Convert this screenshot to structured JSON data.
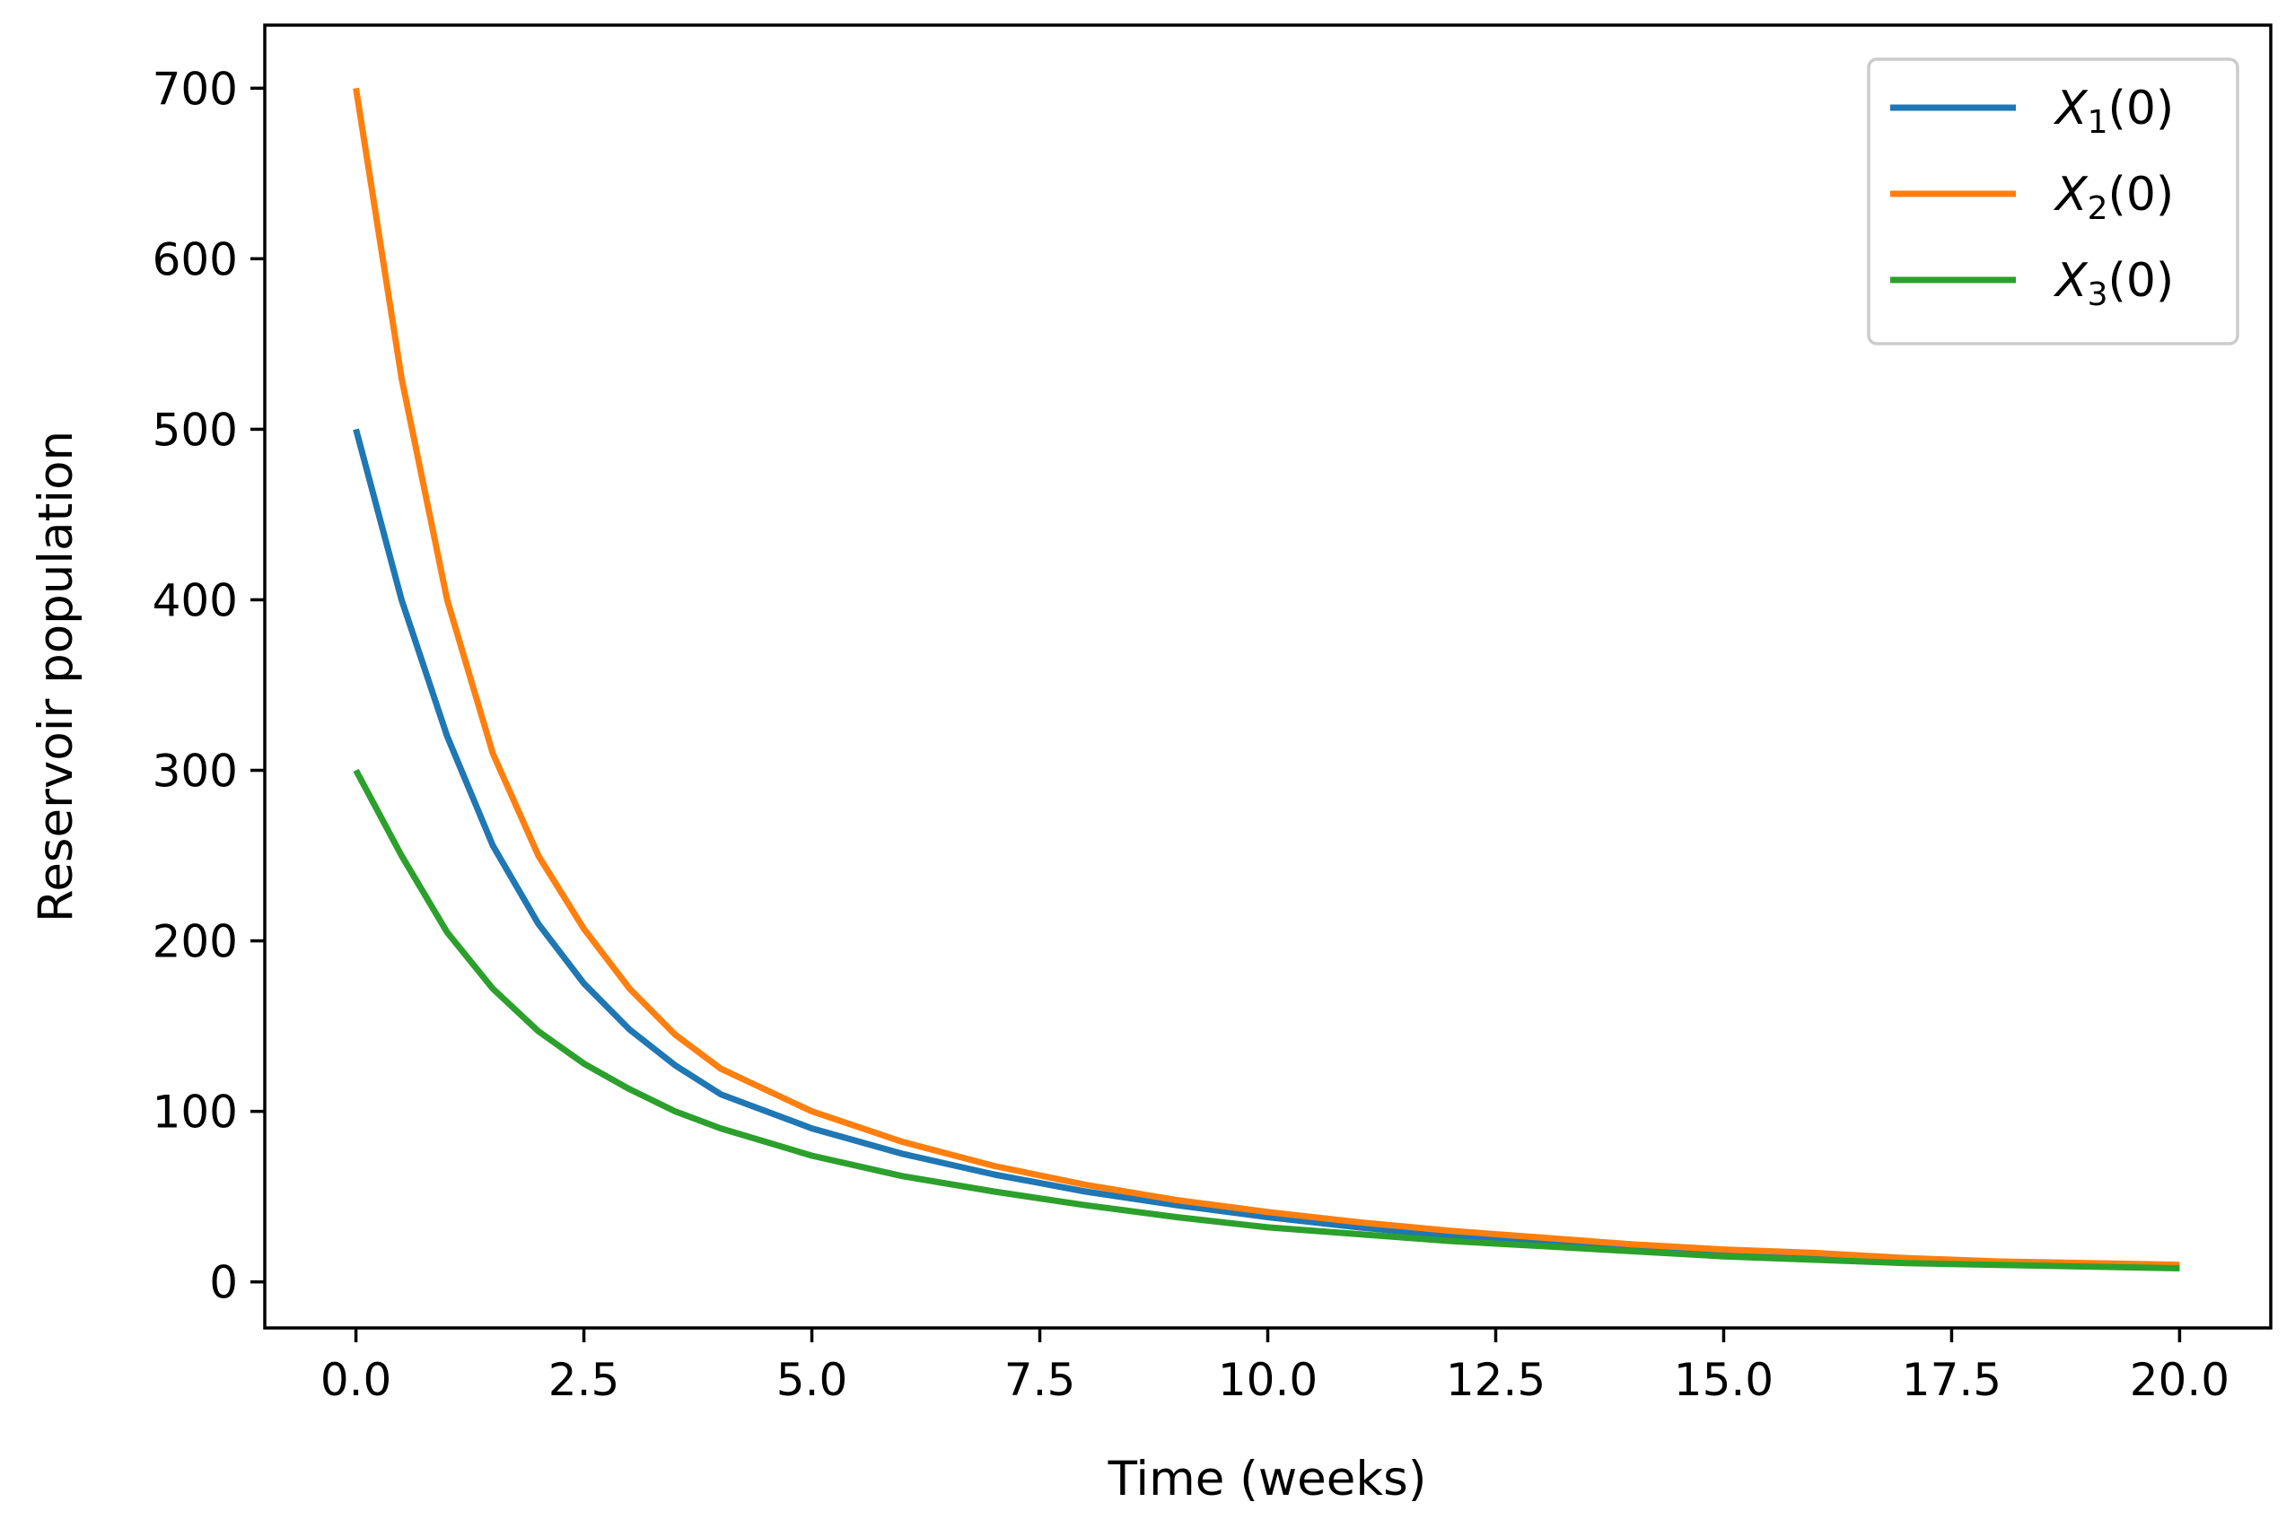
{
  "chart_data": {
    "type": "line",
    "title": "",
    "xlabel": "Time (weeks)",
    "ylabel": "Reservoir population",
    "xlim": [
      -1.0,
      21.0
    ],
    "ylim": [
      -27,
      737
    ],
    "xticks": [
      0.0,
      2.5,
      5.0,
      7.5,
      10.0,
      12.5,
      15.0,
      17.5,
      20.0
    ],
    "xtick_labels": [
      "0.0",
      "2.5",
      "5.0",
      "7.5",
      "10.0",
      "12.5",
      "15.0",
      "17.5",
      "20.0"
    ],
    "yticks": [
      0,
      100,
      200,
      300,
      400,
      500,
      600,
      700
    ],
    "ytick_labels": [
      "0",
      "100",
      "200",
      "300",
      "400",
      "500",
      "600",
      "700"
    ],
    "grid": false,
    "legend_position": "top-right",
    "x": [
      0,
      0.5,
      1,
      1.5,
      2,
      2.5,
      3,
      3.5,
      4,
      5,
      6,
      7,
      8,
      9,
      10,
      11,
      12,
      13,
      14,
      15,
      16,
      17,
      18,
      19,
      20
    ],
    "series": [
      {
        "name": "X1(0)",
        "symbol": "X",
        "subscript": "1",
        "suffix": "(0)",
        "color": "#1f77b4",
        "values": [
          500,
          400,
          320,
          256,
          210,
          175,
          148,
          127,
          110,
          90,
          75,
          63,
          53,
          45,
          38,
          32,
          27,
          23,
          20,
          17,
          15,
          13,
          11,
          10,
          9
        ]
      },
      {
        "name": "X2(0)",
        "symbol": "X",
        "subscript": "2",
        "suffix": "(0)",
        "color": "#ff7f0e",
        "values": [
          700,
          530,
          400,
          310,
          250,
          207,
          172,
          145,
          125,
          100,
          82,
          68,
          57,
          48,
          41,
          35,
          30,
          26,
          22,
          19,
          17,
          14,
          12,
          11,
          10
        ]
      },
      {
        "name": "X3(0)",
        "symbol": "X",
        "subscript": "3",
        "suffix": "(0)",
        "color": "#2ca02c",
        "values": [
          300,
          250,
          205,
          172,
          147,
          128,
          113,
          100,
          90,
          74,
          62,
          53,
          45,
          38,
          32,
          28,
          24,
          21,
          18,
          15,
          13,
          11,
          10,
          9,
          8
        ]
      }
    ]
  }
}
